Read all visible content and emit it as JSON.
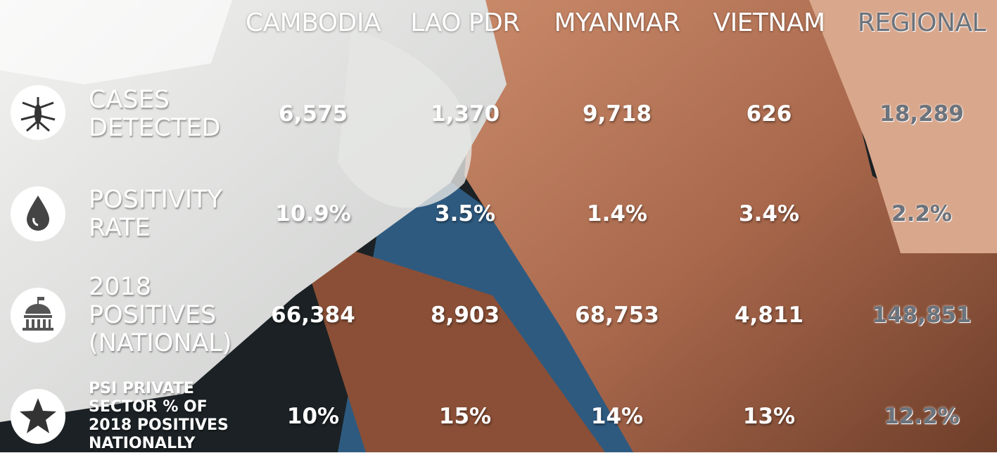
{
  "table": {
    "columns": [
      "CAMBODIA",
      "LAO PDR",
      "MYANMAR",
      "VIETNAM",
      "REGIONAL"
    ],
    "rows": [
      {
        "label": "CASES DETECTED",
        "cells": [
          "6,575",
          "1,370",
          "9,718",
          "626",
          "18,289"
        ]
      },
      {
        "label": "POSITIVITY RATE",
        "cells": [
          "10.9%",
          "3.5%",
          "1.4%",
          "3.4%",
          "2.2%"
        ]
      },
      {
        "label": "2018 POSITIVES (NATIONAL)",
        "cells": [
          "66,384",
          "8,903",
          "68,753",
          "4,811",
          "148,851"
        ]
      },
      {
        "label": "PSI PRIVATE SECTOR % OF 2018 POSITIVES NATIONALLY",
        "cells": [
          "10%",
          "15%",
          "14%",
          "13%",
          "12.2%"
        ]
      }
    ]
  }
}
